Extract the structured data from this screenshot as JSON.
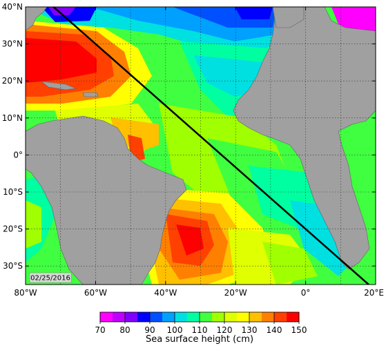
{
  "map": {
    "date_label": "02/25/2016",
    "track": {
      "start": {
        "lon": -72,
        "lat": 40
      },
      "end": {
        "lon": 18,
        "lat": -35
      }
    },
    "extent": {
      "lon": [
        -80,
        20
      ],
      "lat": [
        -35,
        40
      ]
    },
    "lat_ticks": [
      {
        "value": 40,
        "label": "40°N"
      },
      {
        "value": 30,
        "label": "30°N"
      },
      {
        "value": 20,
        "label": "20°N"
      },
      {
        "value": 10,
        "label": "10°N"
      },
      {
        "value": 0,
        "label": "0°"
      },
      {
        "value": -10,
        "label": "10°S"
      },
      {
        "value": -20,
        "label": "20°S"
      },
      {
        "value": -30,
        "label": "30°S"
      }
    ],
    "lon_ticks": [
      {
        "value": -80,
        "label": "80°W"
      },
      {
        "value": -60,
        "label": "60°W"
      },
      {
        "value": -40,
        "label": "40°W"
      },
      {
        "value": -20,
        "label": "20°W"
      },
      {
        "value": 0,
        "label": "0°"
      },
      {
        "value": 20,
        "label": "20°E"
      }
    ],
    "land_color": "#a0a0a0",
    "grid": true
  },
  "colorbar": {
    "title": "Sea surface height (cm)",
    "min": 70,
    "max": 150,
    "ticks": [
      {
        "value": 70,
        "label": "70"
      },
      {
        "value": 80,
        "label": "80"
      },
      {
        "value": 90,
        "label": "90"
      },
      {
        "value": 100,
        "label": "100"
      },
      {
        "value": 110,
        "label": "110"
      },
      {
        "value": 120,
        "label": "120"
      },
      {
        "value": 130,
        "label": "130"
      },
      {
        "value": 140,
        "label": "140"
      },
      {
        "value": 150,
        "label": "150"
      }
    ],
    "colors": [
      "#ff00ff",
      "#c000ff",
      "#8000ff",
      "#0000ff",
      "#0050ff",
      "#00a0ff",
      "#00e0e0",
      "#00ffa0",
      "#40ff40",
      "#a0ff00",
      "#e0ff00",
      "#ffff00",
      "#ffc000",
      "#ff8000",
      "#ff4000",
      "#ff0000"
    ]
  }
}
